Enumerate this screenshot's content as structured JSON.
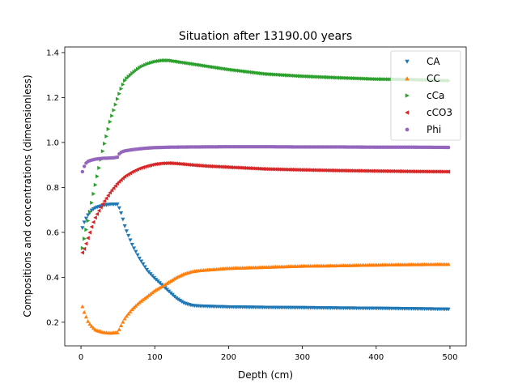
{
  "chart_data": {
    "type": "scatter",
    "title": "Situation after 13190.00 years",
    "xlabel": "Depth (cm)",
    "ylabel": "Compositions and concentrations (dimensionless)",
    "xlim": [
      -22,
      522
    ],
    "ylim": [
      0.095,
      1.425
    ],
    "xticks": [
      0,
      100,
      200,
      300,
      400,
      500
    ],
    "yticks": [
      0.2,
      0.4,
      0.6,
      0.8,
      1.0,
      1.2,
      1.4
    ],
    "xtick_labels": [
      "0",
      "100",
      "200",
      "300",
      "400",
      "500"
    ],
    "ytick_labels": [
      "0.2",
      "0.4",
      "0.6",
      "0.8",
      "1.0",
      "1.2",
      "1.4"
    ],
    "grid": false,
    "legend_position": "top-right",
    "x_range": [
      2,
      498
    ],
    "point_count": 200,
    "series": [
      {
        "name": "CA",
        "marker": "triangle-down",
        "color": "#1f77b4",
        "x": [
          2,
          5,
          10,
          15,
          20,
          30,
          40,
          50,
          55,
          60,
          70,
          80,
          90,
          100,
          110,
          120,
          130,
          140,
          150,
          160,
          180,
          200,
          250,
          300,
          350,
          400,
          450,
          498
        ],
        "values": [
          0.62,
          0.65,
          0.68,
          0.7,
          0.71,
          0.72,
          0.725,
          0.725,
          0.68,
          0.62,
          0.54,
          0.48,
          0.43,
          0.395,
          0.365,
          0.335,
          0.305,
          0.285,
          0.275,
          0.272,
          0.27,
          0.268,
          0.266,
          0.265,
          0.263,
          0.262,
          0.26,
          0.258
        ]
      },
      {
        "name": "CC",
        "marker": "triangle-up",
        "color": "#ff7f0e",
        "x": [
          2,
          5,
          10,
          15,
          20,
          25,
          30,
          40,
          50,
          55,
          60,
          70,
          80,
          90,
          100,
          110,
          120,
          130,
          140,
          150,
          160,
          180,
          200,
          250,
          300,
          350,
          400,
          450,
          498
        ],
        "values": [
          0.27,
          0.24,
          0.2,
          0.18,
          0.165,
          0.16,
          0.155,
          0.152,
          0.155,
          0.19,
          0.22,
          0.26,
          0.29,
          0.315,
          0.34,
          0.36,
          0.38,
          0.4,
          0.415,
          0.425,
          0.43,
          0.435,
          0.44,
          0.445,
          0.45,
          0.452,
          0.455,
          0.457,
          0.458
        ]
      },
      {
        "name": "cCa",
        "marker": "triangle-right",
        "color": "#2ca02c",
        "x": [
          2,
          5,
          10,
          15,
          20,
          30,
          40,
          50,
          55,
          60,
          70,
          80,
          90,
          100,
          110,
          120,
          130,
          140,
          150,
          170,
          200,
          250,
          300,
          350,
          400,
          450,
          498
        ],
        "values": [
          0.53,
          0.58,
          0.66,
          0.74,
          0.82,
          0.97,
          1.1,
          1.2,
          1.245,
          1.28,
          1.31,
          1.335,
          1.35,
          1.36,
          1.365,
          1.365,
          1.36,
          1.355,
          1.35,
          1.34,
          1.325,
          1.305,
          1.295,
          1.288,
          1.282,
          1.28,
          1.275
        ]
      },
      {
        "name": "cCO3",
        "marker": "triangle-left",
        "color": "#d62728",
        "x": [
          2,
          5,
          10,
          15,
          20,
          30,
          40,
          50,
          60,
          70,
          80,
          90,
          100,
          110,
          120,
          130,
          140,
          150,
          170,
          200,
          250,
          300,
          350,
          400,
          450,
          498
        ],
        "values": [
          0.51,
          0.53,
          0.58,
          0.63,
          0.67,
          0.73,
          0.78,
          0.82,
          0.85,
          0.87,
          0.885,
          0.895,
          0.903,
          0.907,
          0.908,
          0.906,
          0.903,
          0.9,
          0.895,
          0.89,
          0.882,
          0.878,
          0.875,
          0.873,
          0.871,
          0.87
        ]
      },
      {
        "name": "Phi",
        "marker": "circle",
        "color": "#9467bd",
        "x": [
          2,
          4,
          6,
          8,
          10,
          15,
          20,
          25,
          30,
          35,
          40,
          45,
          50,
          52,
          55,
          60,
          70,
          80,
          90,
          100,
          120,
          150,
          200,
          250,
          300,
          350,
          400,
          450,
          498
        ],
        "values": [
          0.87,
          0.89,
          0.905,
          0.912,
          0.917,
          0.922,
          0.926,
          0.928,
          0.93,
          0.93,
          0.931,
          0.932,
          0.935,
          0.95,
          0.958,
          0.963,
          0.968,
          0.972,
          0.975,
          0.977,
          0.979,
          0.98,
          0.981,
          0.981,
          0.98,
          0.98,
          0.979,
          0.979,
          0.978
        ]
      }
    ]
  }
}
